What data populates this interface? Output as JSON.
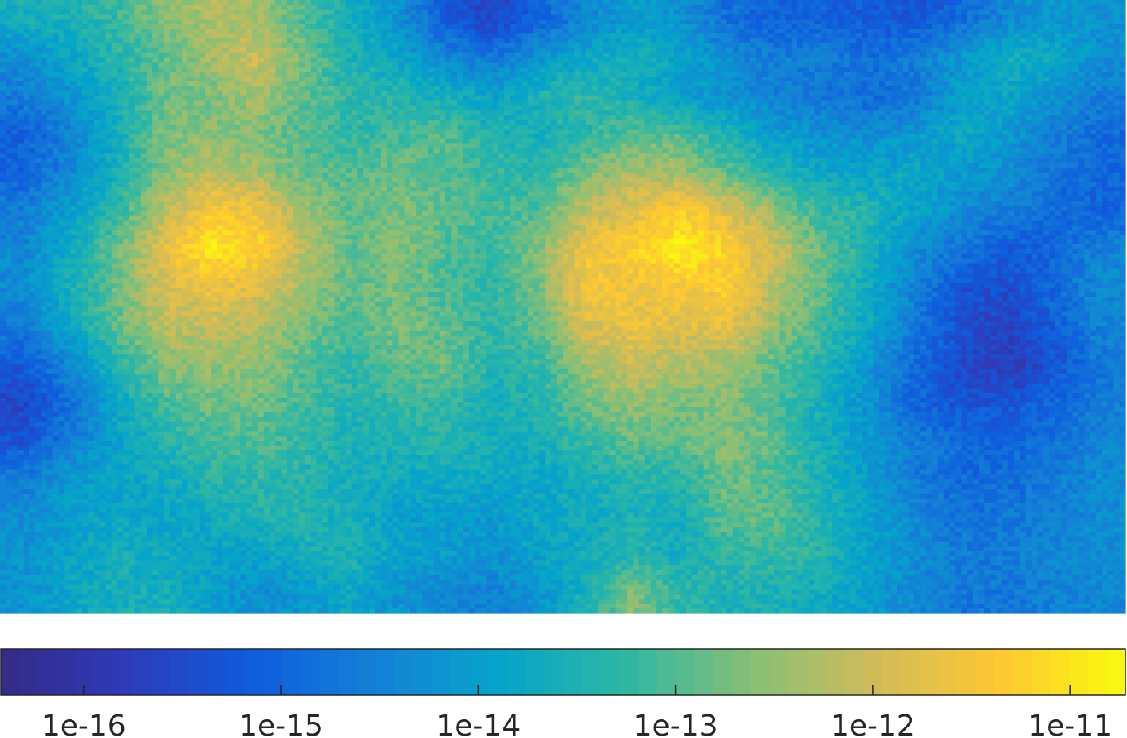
{
  "chart_data": {
    "type": "heatmap",
    "title": "",
    "xlabel": "",
    "ylabel": "",
    "grid": false,
    "colormap": "parula",
    "colormap_stops": [
      "#352a87",
      "#2e3bb9",
      "#0f5cdd",
      "#1481d6",
      "#06a4ca",
      "#2eb7a4",
      "#87bf77",
      "#d1bb59",
      "#fec832",
      "#f9fb0e"
    ],
    "colorbar": {
      "location": "bottom",
      "scale": "log",
      "range_log10": [
        -16.42,
        -10.72
      ],
      "ticks": [
        {
          "value_log10": -16,
          "label": "1e-16"
        },
        {
          "value_log10": -15,
          "label": "1e-15"
        },
        {
          "value_log10": -14,
          "label": "1e-14"
        },
        {
          "value_log10": -13,
          "label": "1e-13"
        },
        {
          "value_log10": -12,
          "label": "1e-12"
        },
        {
          "value_log10": -11,
          "label": "1e-11"
        }
      ]
    },
    "value_scale": "log10",
    "value_range_log10": [
      -16.42,
      -10.72
    ],
    "grid_shape": {
      "rows": 16,
      "cols": 24
    },
    "values_log10": [
      [
        -13.6,
        -13.5,
        -13.2,
        -12.6,
        -12.3,
        -12.4,
        -13.1,
        -13.6,
        -14.2,
        -15.2,
        -15.6,
        -15.0,
        -14.4,
        -14.0,
        -14.2,
        -14.8,
        -15.1,
        -15.0,
        -15.2,
        -15.3,
        -14.9,
        -14.4,
        -14.1,
        -14.2
      ],
      [
        -14.3,
        -13.8,
        -13.4,
        -12.9,
        -12.4,
        -12.0,
        -12.8,
        -13.5,
        -13.9,
        -14.4,
        -14.7,
        -14.2,
        -13.8,
        -13.6,
        -13.9,
        -14.3,
        -14.6,
        -14.6,
        -14.8,
        -14.6,
        -14.1,
        -13.6,
        -13.8,
        -14.3
      ],
      [
        -14.6,
        -14.2,
        -13.6,
        -12.8,
        -12.7,
        -12.3,
        -12.9,
        -13.3,
        -13.4,
        -13.6,
        -13.9,
        -13.5,
        -13.3,
        -13.6,
        -14.0,
        -14.2,
        -14.5,
        -14.7,
        -14.9,
        -14.7,
        -14.0,
        -13.8,
        -14.2,
        -14.6
      ],
      [
        -15.1,
        -14.5,
        -13.6,
        -12.7,
        -12.6,
        -12.7,
        -13.0,
        -13.3,
        -13.1,
        -13.0,
        -13.4,
        -13.6,
        -13.3,
        -12.9,
        -13.0,
        -13.5,
        -14.0,
        -14.2,
        -14.3,
        -14.1,
        -13.8,
        -14.1,
        -14.6,
        -14.9
      ],
      [
        -15.0,
        -14.4,
        -13.6,
        -12.6,
        -12.1,
        -12.4,
        -12.9,
        -13.0,
        -12.8,
        -13.0,
        -13.2,
        -13.3,
        -12.7,
        -12.3,
        -12.4,
        -12.9,
        -13.4,
        -13.8,
        -13.9,
        -13.8,
        -14.1,
        -14.3,
        -14.7,
        -15.0
      ],
      [
        -14.6,
        -14.0,
        -13.3,
        -12.2,
        -11.4,
        -11.6,
        -12.4,
        -12.9,
        -12.7,
        -12.9,
        -13.1,
        -13.0,
        -12.1,
        -11.8,
        -11.3,
        -11.8,
        -12.5,
        -13.2,
        -13.4,
        -13.9,
        -14.3,
        -14.6,
        -14.9,
        -15.0
      ],
      [
        -14.4,
        -13.7,
        -12.8,
        -11.7,
        -10.9,
        -11.2,
        -12.2,
        -12.9,
        -12.6,
        -13.0,
        -13.2,
        -12.6,
        -11.6,
        -11.3,
        -10.8,
        -11.3,
        -12.0,
        -12.9,
        -13.5,
        -14.3,
        -14.7,
        -15.2,
        -15.0,
        -14.5
      ],
      [
        -14.3,
        -13.6,
        -12.8,
        -11.9,
        -11.6,
        -11.8,
        -12.4,
        -12.9,
        -12.7,
        -13.1,
        -13.3,
        -12.7,
        -11.5,
        -11.6,
        -11.5,
        -11.3,
        -12.2,
        -12.9,
        -13.7,
        -14.5,
        -15.3,
        -15.4,
        -14.9,
        -14.3
      ],
      [
        -14.6,
        -13.8,
        -12.9,
        -12.2,
        -12.1,
        -12.3,
        -12.7,
        -13.1,
        -12.7,
        -12.9,
        -13.3,
        -12.9,
        -11.9,
        -11.6,
        -11.8,
        -11.7,
        -12.5,
        -13.1,
        -13.8,
        -14.6,
        -15.4,
        -15.6,
        -15.1,
        -14.5
      ],
      [
        -15.2,
        -14.4,
        -13.4,
        -12.6,
        -12.5,
        -12.5,
        -13.0,
        -13.3,
        -12.9,
        -12.8,
        -13.4,
        -13.2,
        -12.4,
        -12.0,
        -12.3,
        -12.4,
        -12.9,
        -13.4,
        -14.1,
        -14.9,
        -15.5,
        -15.8,
        -15.3,
        -14.7
      ],
      [
        -15.6,
        -14.8,
        -13.8,
        -13.1,
        -12.8,
        -12.8,
        -13.1,
        -13.4,
        -13.2,
        -13.2,
        -13.6,
        -13.4,
        -12.8,
        -12.5,
        -12.7,
        -12.6,
        -13.0,
        -13.6,
        -14.2,
        -15.0,
        -15.3,
        -15.3,
        -15.0,
        -14.6
      ],
      [
        -15.3,
        -14.6,
        -13.9,
        -13.4,
        -13.1,
        -13.0,
        -13.3,
        -13.5,
        -13.5,
        -13.4,
        -13.6,
        -13.6,
        -13.2,
        -12.9,
        -12.9,
        -12.6,
        -12.9,
        -13.6,
        -14.1,
        -14.6,
        -14.9,
        -15.0,
        -14.8,
        -14.4
      ],
      [
        -14.6,
        -14.1,
        -13.9,
        -13.7,
        -13.4,
        -13.3,
        -13.4,
        -13.6,
        -13.7,
        -13.7,
        -13.8,
        -13.8,
        -13.6,
        -13.4,
        -13.4,
        -12.8,
        -13.0,
        -13.5,
        -14.0,
        -14.6,
        -14.9,
        -14.9,
        -14.6,
        -14.3
      ],
      [
        -14.3,
        -14.0,
        -13.8,
        -13.9,
        -13.7,
        -13.5,
        -13.4,
        -13.6,
        -14.0,
        -14.0,
        -14.1,
        -13.8,
        -13.7,
        -13.5,
        -13.6,
        -12.9,
        -12.9,
        -13.4,
        -13.9,
        -14.4,
        -14.8,
        -14.7,
        -14.5,
        -14.3
      ],
      [
        -14.2,
        -13.9,
        -13.6,
        -13.7,
        -13.9,
        -13.9,
        -13.6,
        -13.5,
        -13.9,
        -14.0,
        -14.2,
        -13.9,
        -13.6,
        -13.4,
        -13.6,
        -13.3,
        -13.2,
        -13.4,
        -13.9,
        -14.3,
        -14.6,
        -14.6,
        -14.4,
        -14.3
      ],
      [
        -14.2,
        -13.8,
        -13.6,
        -13.6,
        -14.0,
        -14.3,
        -14.1,
        -13.8,
        -14.2,
        -14.4,
        -14.5,
        -14.2,
        -13.5,
        -12.6,
        -13.3,
        -13.5,
        -13.5,
        -13.7,
        -14.0,
        -14.4,
        -14.7,
        -14.7,
        -14.5,
        -14.4
      ]
    ]
  }
}
